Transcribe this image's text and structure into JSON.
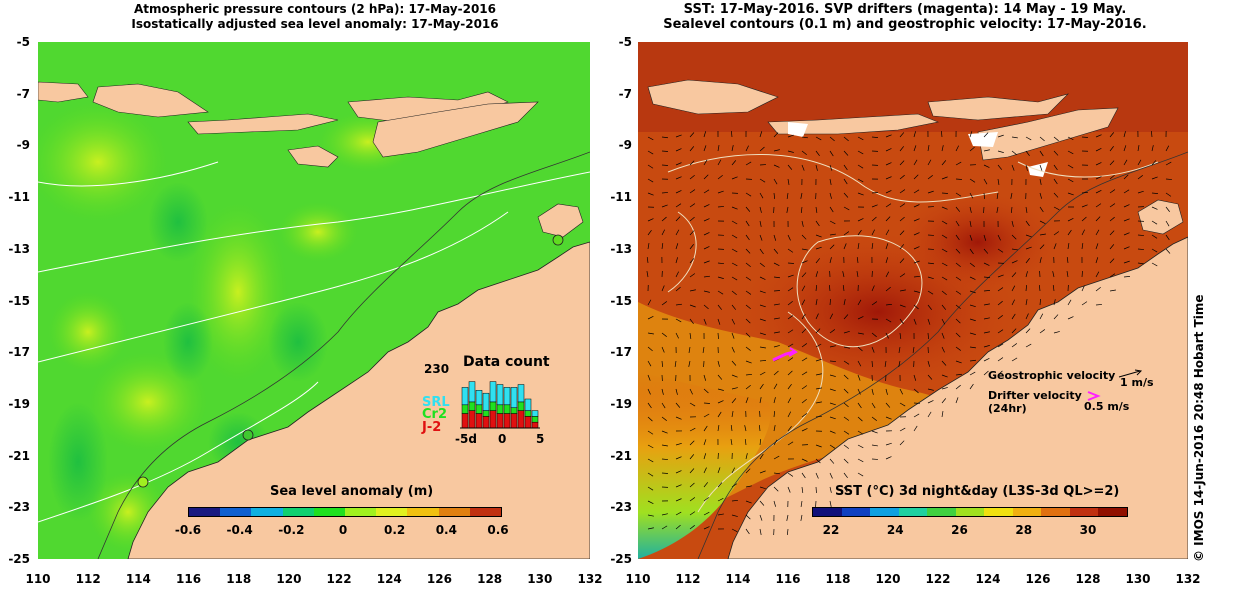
{
  "left": {
    "title_line1": "Atmospheric pressure contours (2 hPa): 17-May-2016",
    "title_line2": "Isostatically adjusted sea level anomaly: 17-May-2016",
    "colorbar_title": "Sea level anomaly (m)",
    "colorbar_ticks": [
      "-0.6",
      "-0.4",
      "-0.2",
      "0",
      "0.2",
      "0.4",
      "0.6"
    ],
    "colorbar_colors": [
      "#1a1a80",
      "#1060d0",
      "#10b0e0",
      "#10d070",
      "#20e020",
      "#a0f020",
      "#e0f020",
      "#f0c010",
      "#e08010",
      "#c03010"
    ],
    "data_count": {
      "title": "Data count",
      "ymax": "230",
      "xticks": [
        "-5d",
        "0",
        "5"
      ],
      "legend": [
        {
          "name": "SRL",
          "color": "#30e0f0"
        },
        {
          "name": "Cr2",
          "color": "#20e020"
        },
        {
          "name": "J-2",
          "color": "#e01010"
        }
      ],
      "bars": [
        {
          "srl": 0.3,
          "cr2": 0.15,
          "j2": 0.25
        },
        {
          "srl": 0.35,
          "cr2": 0.15,
          "j2": 0.3
        },
        {
          "srl": 0.25,
          "cr2": 0.15,
          "j2": 0.25
        },
        {
          "srl": 0.3,
          "cr2": 0.1,
          "j2": 0.2
        },
        {
          "srl": 0.35,
          "cr2": 0.15,
          "j2": 0.3
        },
        {
          "srl": 0.35,
          "cr2": 0.15,
          "j2": 0.25
        },
        {
          "srl": 0.3,
          "cr2": 0.15,
          "j2": 0.25
        },
        {
          "srl": 0.35,
          "cr2": 0.1,
          "j2": 0.25
        },
        {
          "srl": 0.3,
          "cr2": 0.15,
          "j2": 0.3
        },
        {
          "srl": 0.2,
          "cr2": 0.1,
          "j2": 0.2
        },
        {
          "srl": 0.1,
          "cr2": 0.1,
          "j2": 0.1
        }
      ]
    }
  },
  "right": {
    "title_line1": "SST: 17-May-2016. SVP drifters (magenta): 14 May - 19 May.",
    "title_line2": "Sealevel contours (0.1 m) and geostrophic velocity: 17-May-2016.",
    "colorbar_title": "SST (°C) 3d night&day (L3S-3d QL>=2)",
    "colorbar_ticks": [
      "22",
      "24",
      "26",
      "28",
      "30"
    ],
    "colorbar_colors": [
      "#10107a",
      "#1040c0",
      "#10a0e0",
      "#20d0a0",
      "#40d040",
      "#a0e020",
      "#f0e010",
      "#f0b010",
      "#e07010",
      "#c03010",
      "#901000"
    ],
    "geo_velocity_label": "Geostrophic velocity",
    "geo_velocity_scale": "1 m/s",
    "drifter_velocity_label_1": "Drifter velocity",
    "drifter_velocity_label_2": "(24hr)",
    "drifter_velocity_scale": "0.5 m/s",
    "drifter_color": "#ff20ff"
  },
  "axes": {
    "lat_ticks": [
      "-5",
      "-7",
      "-9",
      "-11",
      "-13",
      "-15",
      "-17",
      "-19",
      "-21",
      "-23",
      "-25"
    ],
    "lon_ticks": [
      "110",
      "112",
      "114",
      "116",
      "118",
      "120",
      "122",
      "124",
      "126",
      "128",
      "130",
      "132"
    ]
  },
  "land_color": "#f8c8a0",
  "credit": "© IMOS 14-Jun-2016 20:48 Hobart Time"
}
